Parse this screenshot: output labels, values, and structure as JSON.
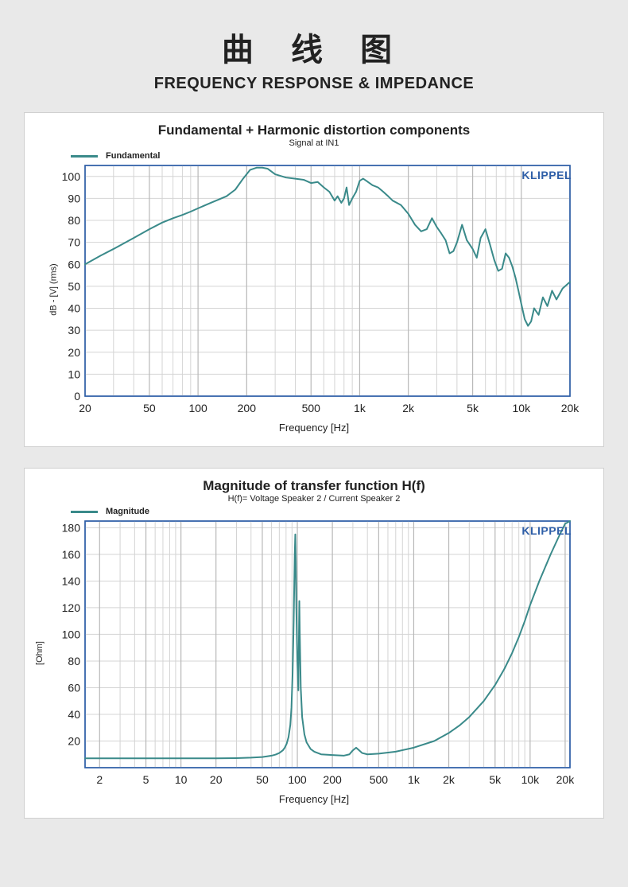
{
  "header": {
    "cn": "曲 线 图",
    "en": "FREQUENCY RESPONSE & IMPEDANCE"
  },
  "chart1": {
    "type": "line",
    "title": "Fundamental + Harmonic distortion components",
    "subtitle": "Signal at IN1",
    "legend_label": "Fundamental",
    "ylabel": "dB - [V]  (rms)",
    "xlabel": "Frequency [Hz]",
    "watermark": "KLIPPEL",
    "line_color": "#3a8a8a",
    "grid_color": "#d4d4d4",
    "grid_major_color": "#b8b8b8",
    "plot_border_color": "#2f5fa8",
    "background_color": "#ffffff",
    "watermark_color": "#2f5fa8",
    "line_width": 2,
    "x_scale": "log",
    "xlim": [
      20,
      20000
    ],
    "ylim": [
      0,
      105
    ],
    "ytick_step": 10,
    "ytick_labels": [
      "0",
      "10",
      "20",
      "30",
      "40",
      "50",
      "60",
      "70",
      "80",
      "90",
      "100"
    ],
    "xtick_major": [
      20,
      50,
      100,
      200,
      500,
      1000,
      2000,
      5000,
      10000,
      20000
    ],
    "xtick_labels": [
      "20",
      "50",
      "100",
      "200",
      "500",
      "1k",
      "2k",
      "5k",
      "10k",
      "20k"
    ],
    "xtick_minor": [
      30,
      40,
      60,
      70,
      80,
      90,
      300,
      400,
      600,
      700,
      800,
      900,
      3000,
      4000,
      6000,
      7000,
      8000,
      9000
    ],
    "data": [
      [
        20,
        60
      ],
      [
        25,
        64
      ],
      [
        30,
        67
      ],
      [
        40,
        72
      ],
      [
        50,
        76
      ],
      [
        60,
        79
      ],
      [
        70,
        81
      ],
      [
        80,
        82.5
      ],
      [
        90,
        84
      ],
      [
        100,
        85.5
      ],
      [
        120,
        88
      ],
      [
        150,
        91
      ],
      [
        170,
        94
      ],
      [
        190,
        99
      ],
      [
        210,
        103
      ],
      [
        230,
        104
      ],
      [
        250,
        104
      ],
      [
        270,
        103.5
      ],
      [
        300,
        101
      ],
      [
        350,
        99.5
      ],
      [
        400,
        99
      ],
      [
        450,
        98.5
      ],
      [
        500,
        97
      ],
      [
        550,
        97.5
      ],
      [
        600,
        95
      ],
      [
        650,
        93
      ],
      [
        700,
        89
      ],
      [
        730,
        91
      ],
      [
        770,
        88
      ],
      [
        800,
        90
      ],
      [
        830,
        95
      ],
      [
        860,
        87
      ],
      [
        900,
        90
      ],
      [
        950,
        93
      ],
      [
        1000,
        98
      ],
      [
        1050,
        99
      ],
      [
        1100,
        98
      ],
      [
        1200,
        96
      ],
      [
        1300,
        95
      ],
      [
        1400,
        93
      ],
      [
        1500,
        91
      ],
      [
        1600,
        89
      ],
      [
        1800,
        87
      ],
      [
        2000,
        83
      ],
      [
        2200,
        78
      ],
      [
        2400,
        75
      ],
      [
        2600,
        76
      ],
      [
        2800,
        81
      ],
      [
        3000,
        77
      ],
      [
        3200,
        74
      ],
      [
        3400,
        71
      ],
      [
        3600,
        65
      ],
      [
        3800,
        66
      ],
      [
        4000,
        70
      ],
      [
        4300,
        78
      ],
      [
        4600,
        71
      ],
      [
        5000,
        67
      ],
      [
        5300,
        63
      ],
      [
        5600,
        72
      ],
      [
        6000,
        76
      ],
      [
        6400,
        69
      ],
      [
        6800,
        62
      ],
      [
        7200,
        57
      ],
      [
        7600,
        58
      ],
      [
        8000,
        65
      ],
      [
        8400,
        63
      ],
      [
        8800,
        59
      ],
      [
        9200,
        54
      ],
      [
        9600,
        48
      ],
      [
        10000,
        42
      ],
      [
        10500,
        35
      ],
      [
        11000,
        32
      ],
      [
        11500,
        34
      ],
      [
        12000,
        40
      ],
      [
        12800,
        37
      ],
      [
        13600,
        45
      ],
      [
        14500,
        41
      ],
      [
        15500,
        48
      ],
      [
        16500,
        44
      ],
      [
        18000,
        49
      ],
      [
        20000,
        52
      ]
    ]
  },
  "chart2": {
    "type": "line",
    "title": "Magnitude of transfer function H(f)",
    "subtitle": "H(f)= Voltage Speaker 2 / Current Speaker 2",
    "legend_label": "Magnitude",
    "ylabel": "[Ohm]",
    "xlabel": "Frequency [Hz]",
    "watermark": "KLIPPEL",
    "line_color": "#3a8a8a",
    "grid_color": "#d4d4d4",
    "grid_major_color": "#b8b8b8",
    "plot_border_color": "#2f5fa8",
    "background_color": "#ffffff",
    "watermark_color": "#2f5fa8",
    "line_width": 2,
    "x_scale": "log",
    "xlim": [
      1.5,
      22000
    ],
    "ylim": [
      0,
      185
    ],
    "ytick_step": 20,
    "ytick_labels": [
      "20",
      "40",
      "60",
      "80",
      "100",
      "120",
      "140",
      "160",
      "180"
    ],
    "xtick_major": [
      2,
      5,
      10,
      20,
      50,
      100,
      200,
      500,
      1000,
      2000,
      5000,
      10000,
      20000
    ],
    "xtick_labels": [
      "2",
      "5",
      "10",
      "20",
      "50",
      "100",
      "200",
      "500",
      "1k",
      "2k",
      "5k",
      "10k",
      "20k"
    ],
    "xtick_minor": [
      3,
      4,
      6,
      7,
      8,
      9,
      30,
      40,
      60,
      70,
      80,
      90,
      300,
      400,
      600,
      700,
      800,
      900,
      3000,
      4000,
      6000,
      7000,
      8000,
      9000
    ],
    "data": [
      [
        1.5,
        7
      ],
      [
        5,
        7
      ],
      [
        10,
        7
      ],
      [
        20,
        7
      ],
      [
        30,
        7.2
      ],
      [
        40,
        7.5
      ],
      [
        50,
        8
      ],
      [
        55,
        8.5
      ],
      [
        60,
        9
      ],
      [
        65,
        9.8
      ],
      [
        70,
        11
      ],
      [
        75,
        13
      ],
      [
        78,
        15
      ],
      [
        81,
        18
      ],
      [
        84,
        23
      ],
      [
        87,
        32
      ],
      [
        89,
        45
      ],
      [
        91,
        70
      ],
      [
        93,
        110
      ],
      [
        95,
        160
      ],
      [
        96,
        175
      ],
      [
        97,
        155
      ],
      [
        98,
        120
      ],
      [
        100,
        80
      ],
      [
        102,
        58
      ],
      [
        104,
        125
      ],
      [
        105,
        100
      ],
      [
        107,
        60
      ],
      [
        110,
        38
      ],
      [
        115,
        25
      ],
      [
        120,
        19
      ],
      [
        130,
        14
      ],
      [
        140,
        12
      ],
      [
        160,
        10
      ],
      [
        200,
        9.5
      ],
      [
        250,
        9
      ],
      [
        280,
        10
      ],
      [
        300,
        13
      ],
      [
        320,
        15
      ],
      [
        340,
        13
      ],
      [
        360,
        11
      ],
      [
        400,
        10
      ],
      [
        500,
        10.5
      ],
      [
        700,
        12
      ],
      [
        1000,
        15
      ],
      [
        1500,
        20
      ],
      [
        2000,
        26
      ],
      [
        2500,
        32
      ],
      [
        3000,
        38
      ],
      [
        4000,
        50
      ],
      [
        5000,
        62
      ],
      [
        6000,
        74
      ],
      [
        7000,
        86
      ],
      [
        8000,
        98
      ],
      [
        9000,
        110
      ],
      [
        10000,
        122
      ],
      [
        12000,
        140
      ],
      [
        15000,
        160
      ],
      [
        18000,
        175
      ],
      [
        20000,
        183
      ],
      [
        22000,
        190
      ]
    ]
  }
}
